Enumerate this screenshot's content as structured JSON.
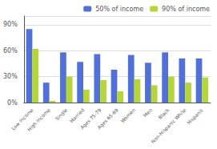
{
  "chart_data": {
    "type": "bar",
    "categories": [
      "Low Income",
      "High Income",
      "Single",
      "Married",
      "Ages 75-79",
      "Ages 65-69",
      "Women",
      "Men",
      "Black",
      "Non-Hispanic White",
      "Hispanic"
    ],
    "series": [
      {
        "name": "50% of income",
        "values": [
          85,
          23,
          58,
          47,
          56,
          38,
          55,
          46,
          58,
          51,
          51
        ]
      },
      {
        "name": "90% of income",
        "values": [
          62,
          2,
          30,
          15,
          26,
          13,
          27,
          20,
          30,
          23,
          29
        ]
      }
    ],
    "ylim": [
      0,
      100
    ],
    "yticks": [
      {
        "value": 0,
        "label": "0%"
      },
      {
        "value": 30,
        "label": "30%"
      },
      {
        "value": 60,
        "label": "60%"
      },
      {
        "value": 90,
        "label": "90%"
      }
    ],
    "grid": true,
    "legend": "upper right"
  }
}
